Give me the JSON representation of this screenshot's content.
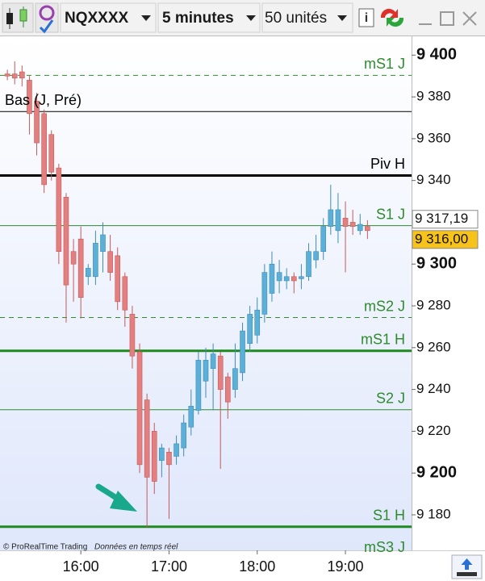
{
  "toolbar": {
    "instrument": "NQXXXX",
    "timeframe": "5 minutes",
    "units": "50 unités"
  },
  "footer": {
    "copyright": "© ProRealTime Trading",
    "note": "Données en temps réel"
  },
  "chart_data": {
    "type": "candlestick",
    "x": [
      "15:10",
      "15:15",
      "15:20",
      "15:25",
      "15:30",
      "15:35",
      "15:40",
      "15:45",
      "15:50",
      "15:55",
      "16:00",
      "16:05",
      "16:10",
      "16:15",
      "16:20",
      "16:25",
      "16:30",
      "16:35",
      "16:40",
      "16:45",
      "16:50",
      "16:55",
      "17:00",
      "17:05",
      "17:10",
      "17:15",
      "17:20",
      "17:25",
      "17:30",
      "17:35",
      "17:40",
      "17:45",
      "17:50",
      "17:55",
      "18:00",
      "18:05",
      "18:10",
      "18:15",
      "18:20",
      "18:25",
      "18:30",
      "18:35",
      "18:40",
      "18:45",
      "18:50",
      "18:55",
      "19:00",
      "19:05",
      "19:10",
      "19:15"
    ],
    "open": [
      9391,
      9391,
      9392,
      9388,
      9378,
      9372,
      9362,
      9346,
      9332,
      9306,
      9312,
      9294,
      9294,
      9306,
      9306,
      9304,
      9294,
      9276,
      9258,
      9235,
      9220,
      9206,
      9210,
      9208,
      9212,
      9222,
      9230,
      9244,
      9250,
      9256,
      9246,
      9240,
      9248,
      9262,
      9266,
      9276,
      9286,
      9292,
      9292,
      9294,
      9293,
      9294,
      9302,
      9306,
      9318,
      9316,
      9322,
      9320,
      9316,
      9318
    ],
    "high": [
      9393,
      9397,
      9395,
      9390,
      9382,
      9374,
      9364,
      9348,
      9334,
      9312,
      9318,
      9300,
      9316,
      9320,
      9314,
      9308,
      9296,
      9280,
      9262,
      9238,
      9224,
      9214,
      9212,
      9218,
      9228,
      9240,
      9258,
      9260,
      9262,
      9258,
      9248,
      9262,
      9272,
      9280,
      9284,
      9300,
      9306,
      9302,
      9298,
      9296,
      9300,
      9310,
      9314,
      9322,
      9338,
      9334,
      9330,
      9326,
      9324,
      9321
    ],
    "low": [
      9388,
      9386,
      9385,
      9362,
      9352,
      9334,
      9340,
      9300,
      9272,
      9282,
      9274,
      9290,
      9290,
      9296,
      9292,
      9278,
      9270,
      9250,
      9200,
      9174,
      9190,
      9198,
      9178,
      9204,
      9208,
      9218,
      9228,
      9236,
      9230,
      9202,
      9226,
      9236,
      9244,
      9258,
      9262,
      9272,
      9282,
      9286,
      9288,
      9286,
      9288,
      9292,
      9298,
      9302,
      9314,
      9310,
      9296,
      9314,
      9314,
      9312
    ],
    "close": [
      9390,
      9389,
      9389,
      9372,
      9358,
      9338,
      9344,
      9306,
      9290,
      9300,
      9284,
      9298,
      9310,
      9314,
      9296,
      9282,
      9278,
      9256,
      9204,
      9198,
      9196,
      9212,
      9204,
      9214,
      9224,
      9232,
      9254,
      9254,
      9257,
      9240,
      9234,
      9250,
      9268,
      9276,
      9278,
      9296,
      9300,
      9296,
      9294,
      9292,
      9294,
      9306,
      9306,
      9318,
      9326,
      9326,
      9318,
      9318,
      9319,
      9316
    ],
    "up_color": "#5cb0d8",
    "down_color": "#e47f80",
    "xlim": [
      "15:05",
      "19:45"
    ],
    "xticks": [
      "16:00",
      "17:00",
      "18:00",
      "19:00"
    ],
    "ylim": [
      9163,
      9409
    ],
    "yticks": [
      {
        "value": 9400,
        "label": "9 400"
      },
      {
        "value": 9380,
        "label": "9 380"
      },
      {
        "value": 9360,
        "label": "9 360"
      },
      {
        "value": 9340,
        "label": "9 340"
      },
      {
        "value": 9300,
        "label": "9 300"
      },
      {
        "value": 9280,
        "label": "9 280"
      },
      {
        "value": 9260,
        "label": "9 260"
      },
      {
        "value": 9240,
        "label": "9 240"
      },
      {
        "value": 9220,
        "label": "9 220"
      },
      {
        "value": 9200,
        "label": "9 200"
      },
      {
        "value": 9180,
        "label": "9 180"
      }
    ],
    "levels": [
      {
        "name": "mS1 J",
        "value": 9390.3,
        "color": "#2e8b2e",
        "style": "dashed",
        "width": 1
      },
      {
        "name": "Bas (J, Pré)",
        "value": 9373,
        "color": "#000000",
        "style": "solid",
        "width": 1,
        "align": "left"
      },
      {
        "name": "Piv H",
        "value": 9342.4,
        "color": "#000000",
        "style": "solid",
        "width": 3
      },
      {
        "name": "S1 J",
        "value": 9318.4,
        "color": "#2e8b2e",
        "style": "solid",
        "width": 1
      },
      {
        "name": "mS2 J",
        "value": 9274.4,
        "color": "#2e8b2e",
        "style": "dashed",
        "width": 1
      },
      {
        "name": "mS1 H",
        "value": 9258.5,
        "color": "#1f8a1f",
        "style": "solid",
        "width": 3
      },
      {
        "name": "S2 J",
        "value": 9230.3,
        "color": "#2e8b2e",
        "style": "solid",
        "width": 1
      },
      {
        "name": "S1 H",
        "value": 9174.3,
        "color": "#1f8a1f",
        "style": "solid",
        "width": 3
      },
      {
        "name": "mS3 J",
        "value": 9159,
        "color": "#2e8b2e",
        "style": "dashed",
        "width": 1
      }
    ],
    "price_markers": {
      "values": [
        9317.19,
        9316.0
      ],
      "value_labels": [
        "9 317,19",
        "9 316,00"
      ],
      "colors": [
        "#ffffff",
        "#f7c31a"
      ]
    }
  }
}
